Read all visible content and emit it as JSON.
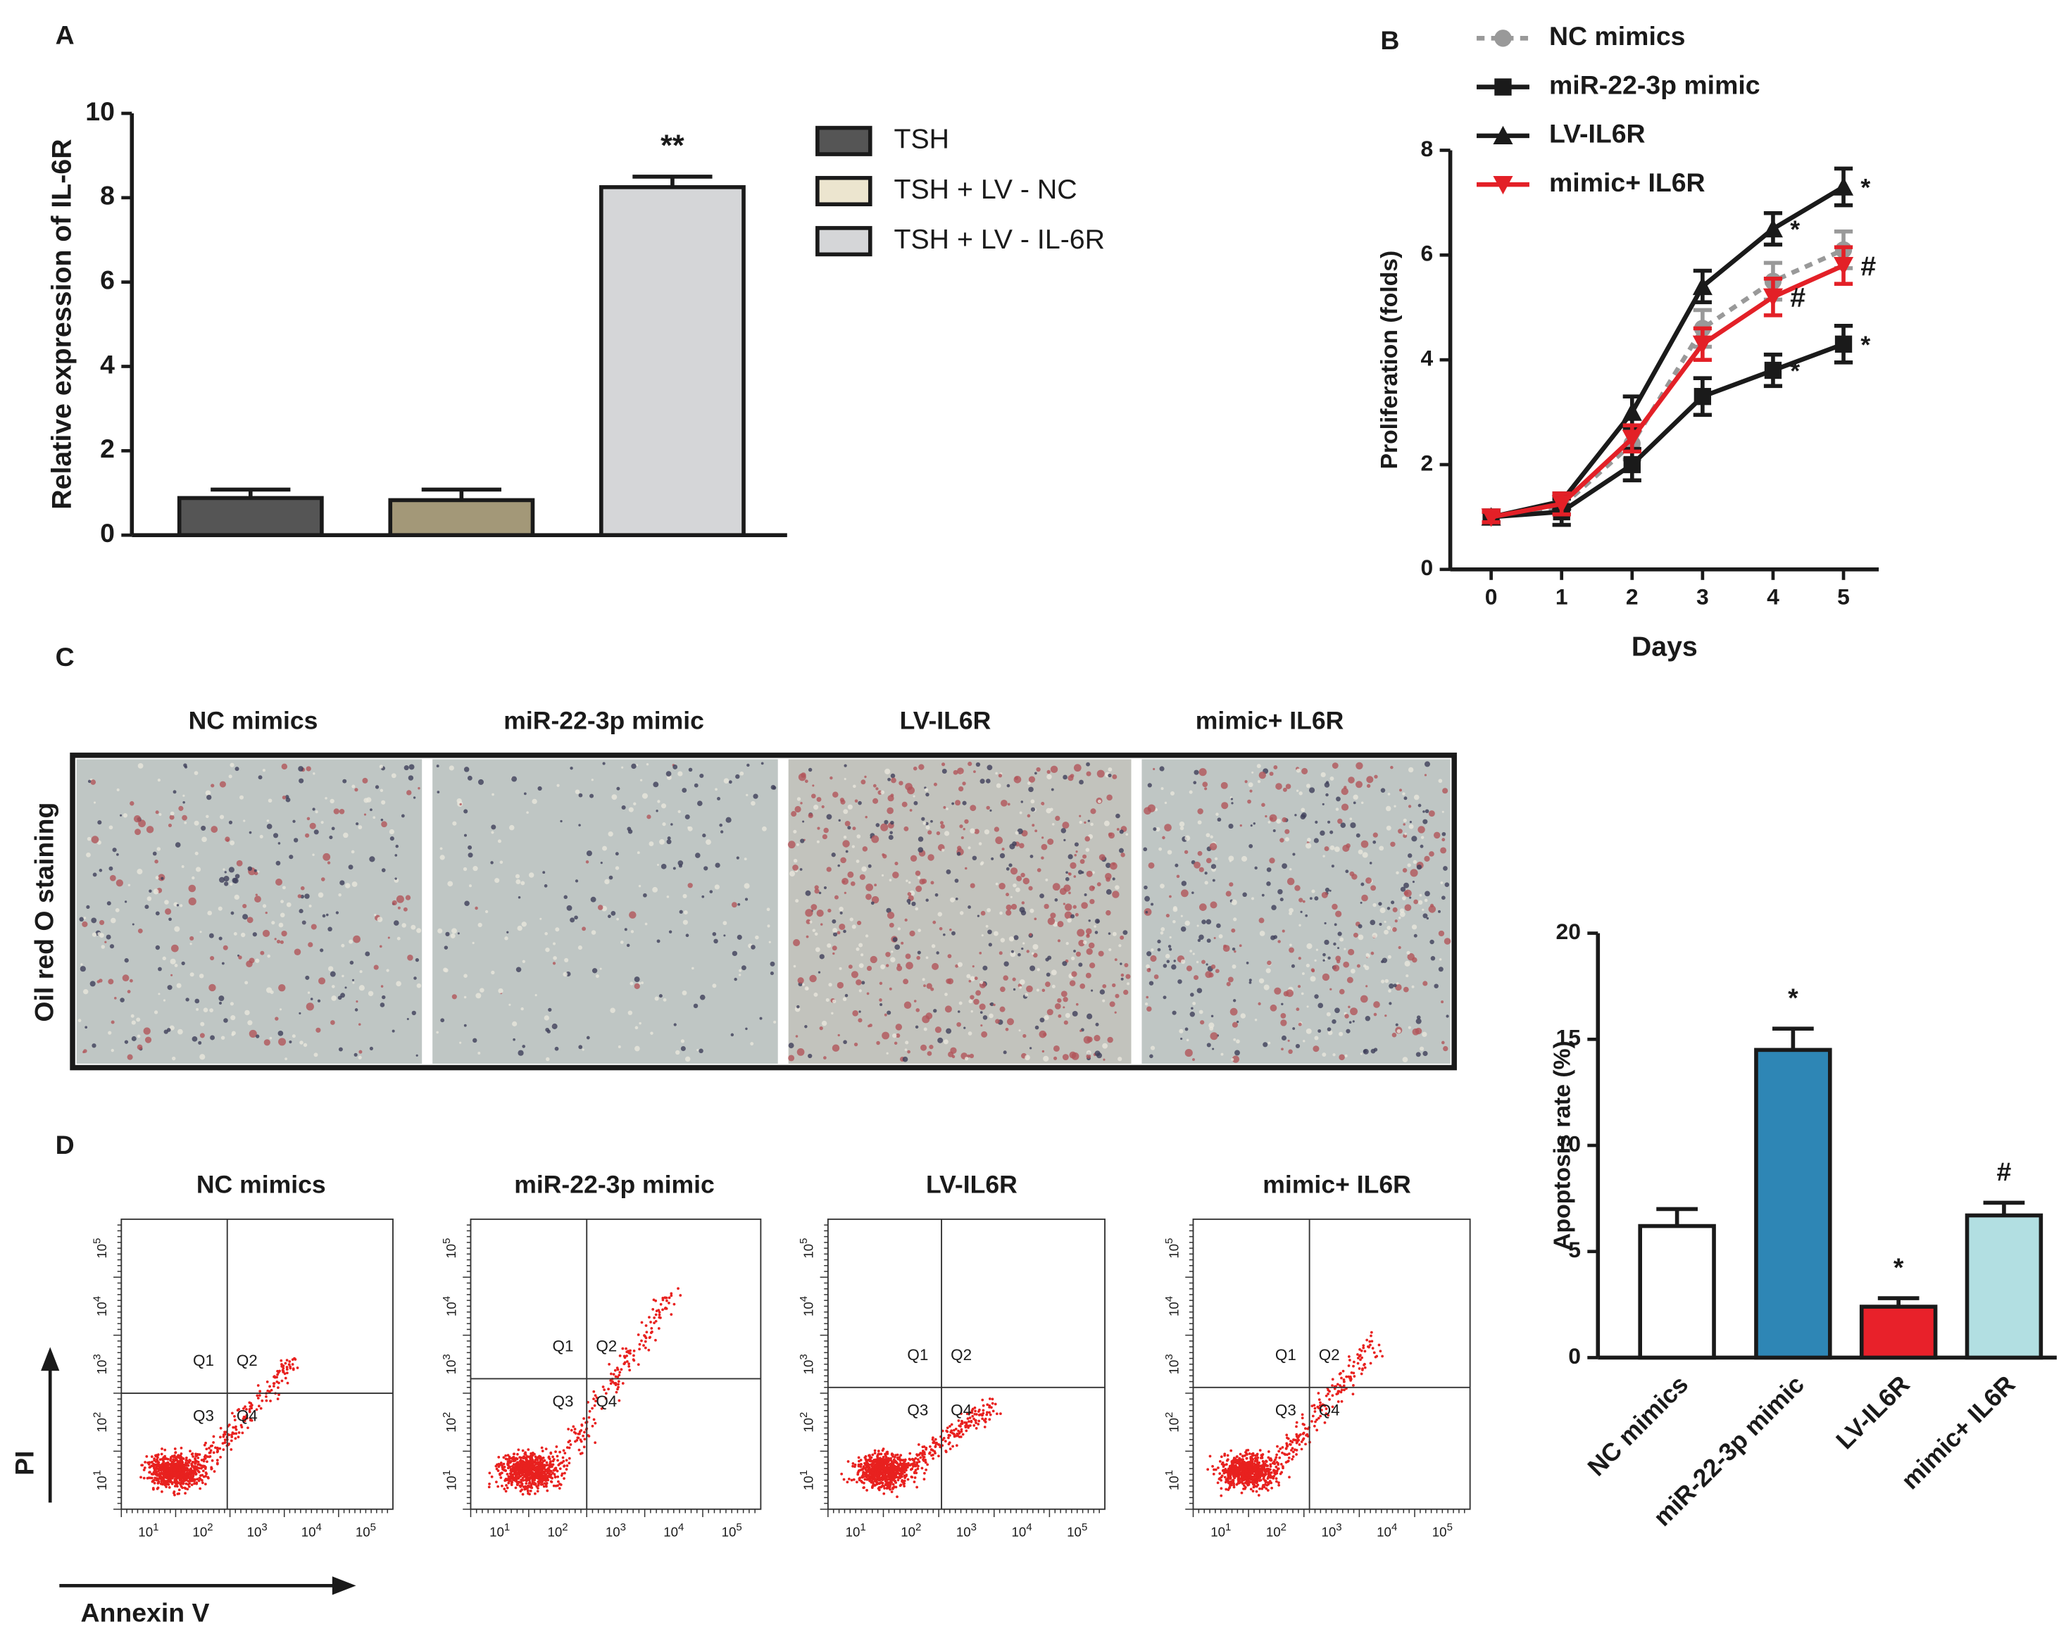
{
  "chart_data": [
    {
      "type": "bar",
      "panel": "A",
      "ylabel": "Relative expression of IL-6R",
      "categories": [
        null,
        null,
        null
      ],
      "values": [
        0.88,
        0.83,
        8.25
      ],
      "errors": [
        0.2,
        0.25,
        0.25
      ],
      "colors": [
        "#555555",
        "#a39878",
        "#d5d6d8"
      ],
      "annotations": [
        null,
        null,
        "**"
      ],
      "legend": [
        "TSH",
        "TSH + LV - NC",
        "TSH + LV - IL-6R"
      ],
      "legend_colors": [
        "#555555",
        "#ece5cf",
        "#d5d6d8"
      ],
      "ylim": [
        0,
        10
      ],
      "yticks": [
        0,
        2,
        4,
        6,
        8,
        10
      ]
    },
    {
      "type": "line",
      "panel": "B",
      "xlabel": "Days",
      "ylabel": "Proliferation (folds)",
      "x": [
        0,
        1,
        2,
        3,
        4,
        5
      ],
      "series": [
        {
          "name": "NC mimics",
          "color": "#999999",
          "marker": "circle",
          "dashed": true,
          "values": [
            1.0,
            1.2,
            2.4,
            4.6,
            5.5,
            6.1
          ],
          "errors": [
            0.1,
            0.15,
            0.3,
            0.35,
            0.35,
            0.35
          ],
          "annotations": [
            null,
            null,
            null,
            null,
            null,
            null
          ]
        },
        {
          "name": "miR-22-3p mimic",
          "color": "#1a1a1a",
          "marker": "square",
          "dashed": false,
          "values": [
            1.0,
            1.1,
            2.0,
            3.3,
            3.8,
            4.3
          ],
          "errors": [
            0.1,
            0.25,
            0.3,
            0.35,
            0.3,
            0.35
          ],
          "annotations": [
            null,
            null,
            null,
            null,
            "*",
            "*"
          ]
        },
        {
          "name": "LV-IL6R",
          "color": "#1a1a1a",
          "marker": "triangle",
          "dashed": false,
          "values": [
            1.0,
            1.3,
            3.0,
            5.4,
            6.5,
            7.3
          ],
          "errors": [
            0.1,
            0.15,
            0.3,
            0.3,
            0.3,
            0.35
          ],
          "annotations": [
            null,
            null,
            null,
            null,
            "*",
            "*"
          ]
        },
        {
          "name": "mimic+ IL6R",
          "color": "#e32027",
          "marker": "triangle-down",
          "dashed": false,
          "values": [
            1.0,
            1.25,
            2.5,
            4.3,
            5.2,
            5.8
          ],
          "errors": [
            0.1,
            0.2,
            0.25,
            0.3,
            0.35,
            0.35
          ],
          "annotations": [
            null,
            null,
            null,
            null,
            "#",
            "#"
          ]
        }
      ],
      "xlim": [
        -0.58,
        5.5
      ],
      "xticks": [
        0,
        1,
        2,
        3,
        4,
        5
      ],
      "ylim": [
        0,
        8
      ],
      "yticks": [
        0,
        2,
        4,
        6,
        8
      ]
    },
    {
      "type": "bar",
      "ylabel": "Apoptosis rate (%)",
      "categories": [
        "NC mimics",
        "miR-22-3p mimic",
        "LV-IL6R",
        "mimic+ IL6R"
      ],
      "values": [
        6.2,
        14.5,
        2.4,
        6.7
      ],
      "errors": [
        0.8,
        1.0,
        0.4,
        0.6
      ],
      "colors": [
        "#ffffff",
        "#2e86b5",
        "#e8212a",
        "#b2dfe2"
      ],
      "annotations": [
        null,
        "*",
        "*",
        "#"
      ],
      "ylim": [
        0,
        20
      ],
      "yticks": [
        0,
        5,
        10,
        15,
        20
      ]
    }
  ],
  "staining": {
    "panel": "C",
    "ylabel": "Oil red O staining",
    "titles": [
      "NC mimics",
      "miR-22-3p mimic",
      "LV-IL6R",
      "mimic+ IL6R"
    ]
  },
  "flow": {
    "panel": "D",
    "xlabel": "Annexin V",
    "ylabel": "PI",
    "titles": [
      "NC mimics",
      "miR-22-3p mimic",
      "LV-IL6R",
      "mimic+ IL6R"
    ],
    "quadrants": [
      "Q1",
      "Q2",
      "Q3",
      "Q4"
    ],
    "tick_base": "10",
    "tick_exponents": [
      1,
      2,
      3,
      4,
      5
    ]
  }
}
